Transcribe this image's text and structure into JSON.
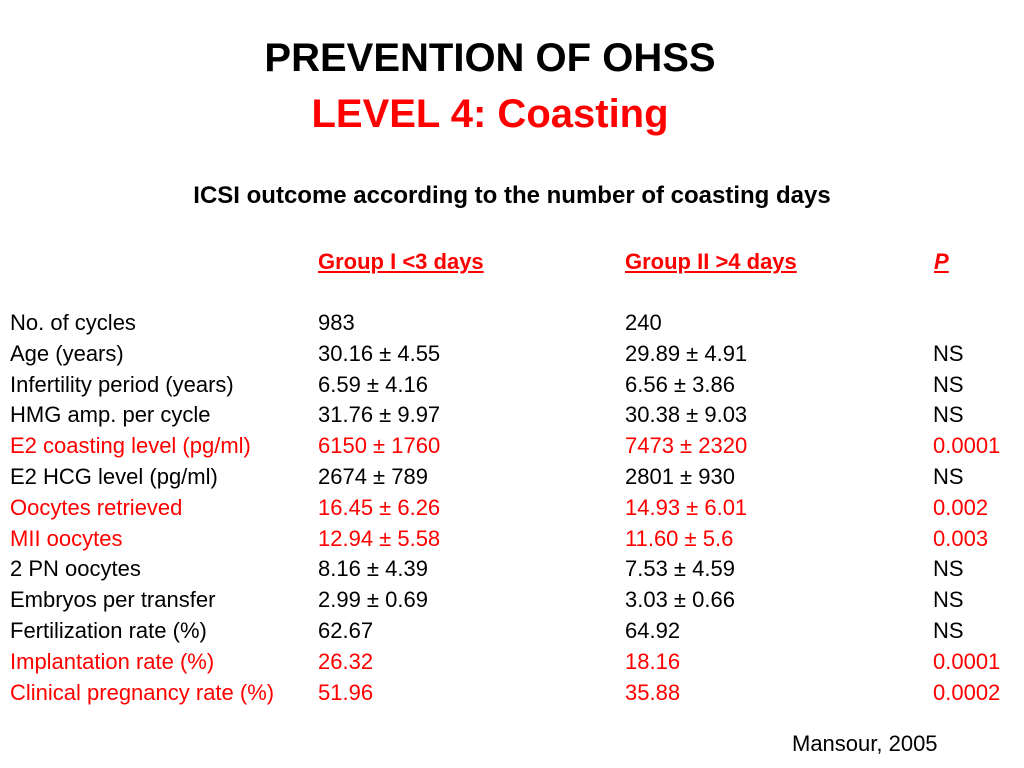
{
  "colors": {
    "highlight": "#ff0000",
    "text": "#000000",
    "background": "#ffffff"
  },
  "title": {
    "main": "PREVENTION OF OHSS",
    "sub": "LEVEL 4: Coasting"
  },
  "subtitle": "ICSI outcome according to the number of coasting days",
  "table": {
    "headers": {
      "group1": "Group I <3 days",
      "group2": "Group II >4 days",
      "p": "P"
    },
    "rows": [
      {
        "label": "No. of cycles",
        "g1": "983",
        "g2": "240",
        "p": "",
        "highlight": false
      },
      {
        "label": "Age (years)",
        "g1": "30.16 ± 4.55",
        "g2": "29.89 ± 4.91",
        "p": "NS",
        "highlight": false
      },
      {
        "label": "Infertility period (years)",
        "g1": "6.59 ± 4.16",
        "g2": "6.56 ± 3.86",
        "p": "NS",
        "highlight": false
      },
      {
        "label": "HMG amp. per cycle",
        "g1": "31.76 ± 9.97",
        "g2": "30.38 ± 9.03",
        "p": "NS",
        "highlight": false
      },
      {
        "label": "E2 coasting level (pg/ml)",
        "g1": "6150 ± 1760",
        "g2": "7473 ± 2320",
        "p": "0.0001",
        "highlight": true
      },
      {
        "label": "E2 HCG level (pg/ml)",
        "g1": "2674 ± 789",
        "g2": "2801 ± 930",
        "p": "NS",
        "highlight": false
      },
      {
        "label": "Oocytes retrieved",
        "g1": "16.45 ± 6.26",
        "g2": "14.93 ± 6.01",
        "p": "0.002",
        "highlight": true
      },
      {
        "label": "MII oocytes",
        "g1": "12.94 ± 5.58",
        "g2": "11.60 ± 5.6",
        "p": "0.003",
        "highlight": true
      },
      {
        "label": "2 PN oocytes",
        "g1": "8.16 ± 4.39",
        "g2": "7.53 ± 4.59",
        "p": "NS",
        "highlight": false
      },
      {
        "label": "Embryos per transfer",
        "g1": "2.99 ± 0.69",
        "g2": "3.03 ± 0.66",
        "p": "NS",
        "highlight": false
      },
      {
        "label": "Fertilization rate (%)",
        "g1": "62.67",
        "g2": "64.92",
        "p": "NS",
        "highlight": false
      },
      {
        "label": "Implantation rate (%)",
        "g1": "26.32",
        "g2": "18.16",
        "p": "0.0001",
        "highlight": true
      },
      {
        "label": "Clinical pregnancy rate (%)",
        "g1": "51.96",
        "g2": "35.88",
        "p": "0.0002",
        "highlight": true
      }
    ]
  },
  "citation": "Mansour, 2005"
}
